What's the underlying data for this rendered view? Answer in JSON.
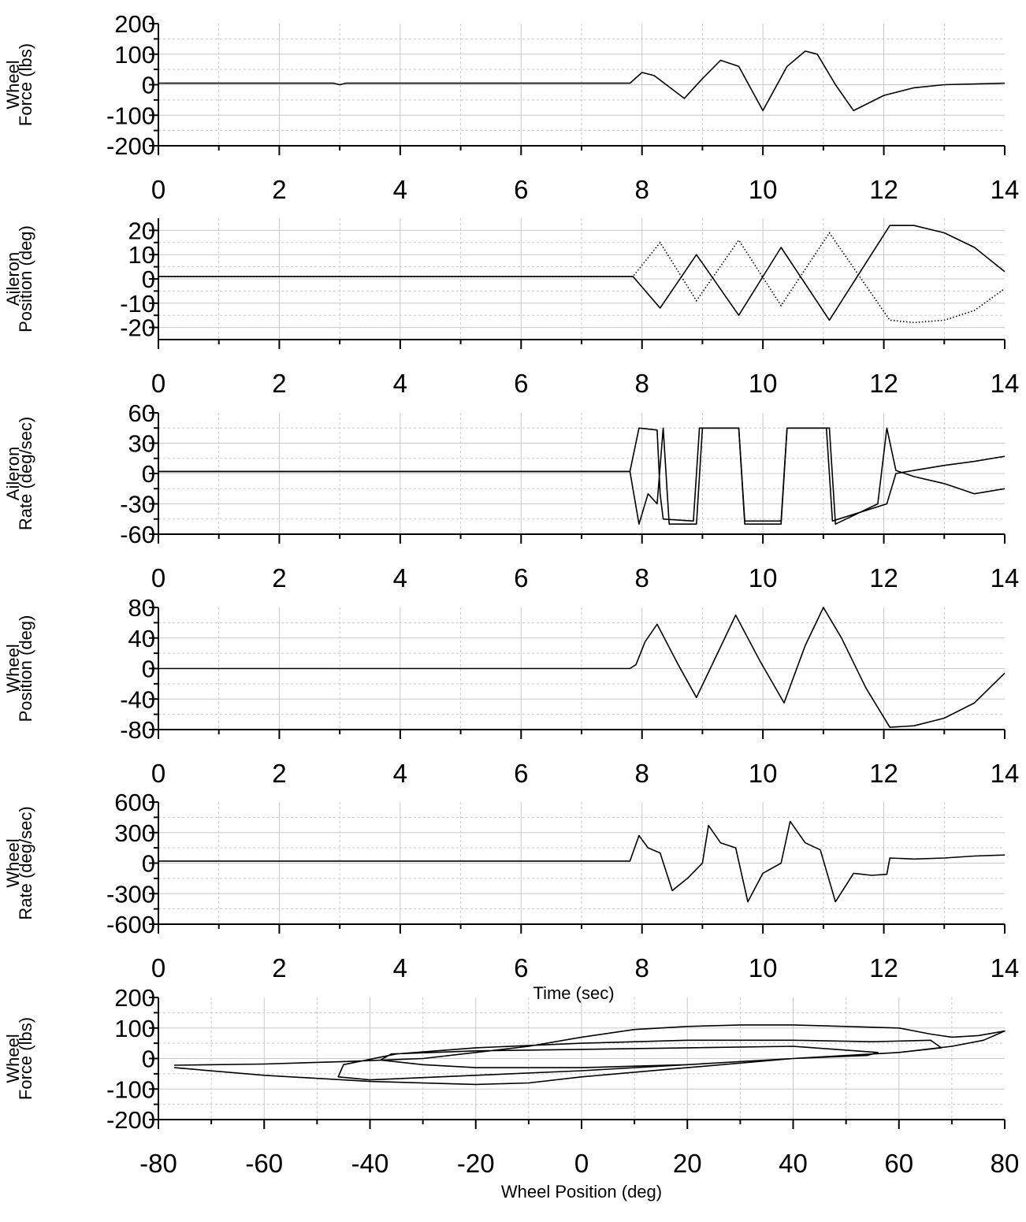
{
  "chart_data": [
    {
      "type": "line",
      "ylabel": [
        "Wheel",
        "Force (lbs)"
      ],
      "xlabel": "",
      "xlim": [
        0,
        14
      ],
      "ylim": [
        -200,
        200
      ],
      "xticks": [
        "0",
        "2",
        "4",
        "6",
        "8",
        "10",
        "12",
        "14"
      ],
      "yticks": [
        "200",
        "100",
        "0",
        "-100",
        "-200"
      ],
      "series": [
        {
          "x": [
            0,
            2.9,
            3.0,
            3.1,
            7.8,
            8.0,
            8.2,
            8.7,
            9.0,
            9.3,
            9.6,
            10.0,
            10.4,
            10.7,
            10.9,
            11.2,
            11.5,
            12.0,
            12.5,
            13.0,
            14.0
          ],
          "y": [
            5,
            5,
            0,
            5,
            5,
            40,
            30,
            -45,
            20,
            80,
            60,
            -85,
            60,
            110,
            100,
            0,
            -85,
            -35,
            -10,
            0,
            5
          ]
        }
      ]
    },
    {
      "type": "line",
      "ylabel": [
        "Aileron",
        "Position (deg)"
      ],
      "xlabel": "",
      "xlim": [
        0,
        14
      ],
      "ylim": [
        -25,
        25
      ],
      "xticks": [
        "0",
        "2",
        "4",
        "6",
        "8",
        "10",
        "12",
        "14"
      ],
      "yticks": [
        "20",
        "10",
        "0",
        "-10",
        "-20"
      ],
      "series": [
        {
          "style": "solid",
          "x": [
            0,
            7.85,
            8.3,
            8.9,
            9.6,
            10.3,
            11.1,
            12.1,
            12.5,
            13.0,
            13.5,
            14.0
          ],
          "y": [
            1,
            1,
            -12,
            10,
            -15,
            13,
            -17,
            22,
            22,
            19,
            13,
            3
          ]
        },
        {
          "style": "dotted",
          "x": [
            0,
            7.85,
            8.3,
            8.9,
            9.6,
            10.3,
            11.1,
            12.1,
            12.5,
            13.0,
            13.5,
            14.0
          ],
          "y": [
            1,
            1,
            15,
            -9,
            16,
            -11,
            19,
            -17,
            -18,
            -17,
            -13,
            -4
          ]
        }
      ]
    },
    {
      "type": "line",
      "ylabel": [
        "Aileron",
        "Rate (deg/sec)"
      ],
      "xlabel": "",
      "xlim": [
        0,
        14
      ],
      "ylim": [
        -60,
        60
      ],
      "xticks": [
        "0",
        "2",
        "4",
        "6",
        "8",
        "10",
        "12",
        "14"
      ],
      "yticks": [
        "60",
        "30",
        "0",
        "-30",
        "-60"
      ],
      "series": [
        {
          "x": [
            0,
            7.8,
            7.95,
            8.25,
            8.3,
            8.35,
            8.85,
            8.95,
            9.6,
            9.7,
            10.3,
            10.4,
            11.05,
            11.15,
            12.05,
            12.2,
            12.5,
            13.0,
            13.5,
            14.0
          ],
          "y": [
            2,
            2,
            45,
            43,
            -20,
            -45,
            -47,
            45,
            45,
            -47,
            -47,
            45,
            45,
            -47,
            -30,
            0,
            3,
            8,
            12,
            17
          ]
        },
        {
          "x": [
            0,
            7.8,
            7.95,
            8.1,
            8.25,
            8.35,
            8.45,
            8.9,
            9.0,
            9.6,
            9.7,
            10.3,
            10.4,
            11.1,
            11.2,
            11.9,
            12.05,
            12.2,
            12.5,
            13.0,
            13.5,
            14.0
          ],
          "y": [
            2,
            2,
            -50,
            -20,
            -30,
            45,
            -50,
            -50,
            45,
            45,
            -50,
            -50,
            45,
            45,
            -50,
            -30,
            45,
            3,
            -3,
            -10,
            -20,
            -15
          ]
        }
      ]
    },
    {
      "type": "line",
      "ylabel": [
        "Wheel",
        "Position (deg)"
      ],
      "xlabel": "",
      "xlim": [
        0,
        14
      ],
      "ylim": [
        -80,
        80
      ],
      "xticks": [
        "0",
        "2",
        "4",
        "6",
        "8",
        "10",
        "12",
        "14"
      ],
      "yticks": [
        "80",
        "40",
        "0",
        "-40",
        "-80"
      ],
      "series": [
        {
          "x": [
            0,
            7.8,
            7.9,
            8.05,
            8.25,
            8.6,
            8.9,
            9.25,
            9.55,
            9.95,
            10.35,
            10.7,
            11.0,
            11.3,
            11.7,
            12.1,
            12.5,
            13.0,
            13.5,
            14.0
          ],
          "y": [
            0,
            0,
            5,
            35,
            58,
            5,
            -38,
            20,
            70,
            10,
            -45,
            30,
            80,
            40,
            -25,
            -77,
            -75,
            -65,
            -45,
            -6
          ]
        }
      ]
    },
    {
      "type": "line",
      "ylabel": [
        "Wheel",
        "Rate (deg/sec)"
      ],
      "xlabel": "Time (sec)",
      "xlim": [
        0,
        14
      ],
      "ylim": [
        -600,
        600
      ],
      "xticks": [
        "0",
        "2",
        "4",
        "6",
        "8",
        "10",
        "12",
        "14"
      ],
      "yticks": [
        "600",
        "300",
        "0",
        "-300",
        "-600"
      ],
      "series": [
        {
          "x": [
            0,
            7.8,
            7.95,
            8.1,
            8.3,
            8.5,
            8.75,
            9.0,
            9.1,
            9.3,
            9.55,
            9.75,
            10.0,
            10.3,
            10.45,
            10.7,
            10.95,
            11.2,
            11.5,
            11.8,
            12.05,
            12.1,
            12.5,
            13.0,
            13.5,
            14.0
          ],
          "y": [
            20,
            20,
            270,
            150,
            100,
            -270,
            -150,
            0,
            370,
            200,
            150,
            -380,
            -100,
            0,
            410,
            200,
            130,
            -380,
            -100,
            -120,
            -110,
            50,
            40,
            50,
            70,
            80
          ]
        }
      ]
    },
    {
      "type": "line",
      "ylabel": [
        "Wheel",
        "Force (lbs)"
      ],
      "xlabel": "Wheel Position (deg)",
      "xlim": [
        -80,
        80
      ],
      "ylim": [
        -200,
        200
      ],
      "xticks": [
        "-80",
        "-60",
        "-40",
        "-20",
        "0",
        "20",
        "40",
        "60",
        "80"
      ],
      "yticks": [
        "200",
        "100",
        "0",
        "-100",
        "-200"
      ],
      "series": [
        {
          "x": [
            -77,
            -60,
            -45,
            -30,
            -20,
            -10,
            0,
            10,
            20,
            30,
            40,
            50,
            60,
            66,
            70,
            75,
            80,
            76,
            70,
            60,
            40,
            20,
            0,
            -20,
            -30,
            -38,
            -36,
            -20,
            0,
            20,
            40,
            56,
            54,
            40,
            20,
            0,
            -20,
            -40,
            -46,
            -45,
            -35,
            -20,
            0,
            20,
            40,
            55,
            66,
            68,
            60,
            40,
            20,
            0,
            -10,
            -20,
            -40,
            -60,
            -77
          ],
          "y": [
            -22,
            -18,
            -10,
            0,
            20,
            40,
            70,
            95,
            105,
            110,
            110,
            105,
            100,
            80,
            70,
            75,
            90,
            60,
            40,
            20,
            0,
            -20,
            -30,
            -30,
            -20,
            -5,
            15,
            25,
            30,
            35,
            40,
            20,
            10,
            0,
            -20,
            -40,
            -55,
            -70,
            -60,
            -20,
            15,
            35,
            50,
            60,
            60,
            55,
            60,
            35,
            20,
            0,
            -30,
            -60,
            -80,
            -85,
            -75,
            -55,
            -30
          ]
        }
      ]
    }
  ]
}
